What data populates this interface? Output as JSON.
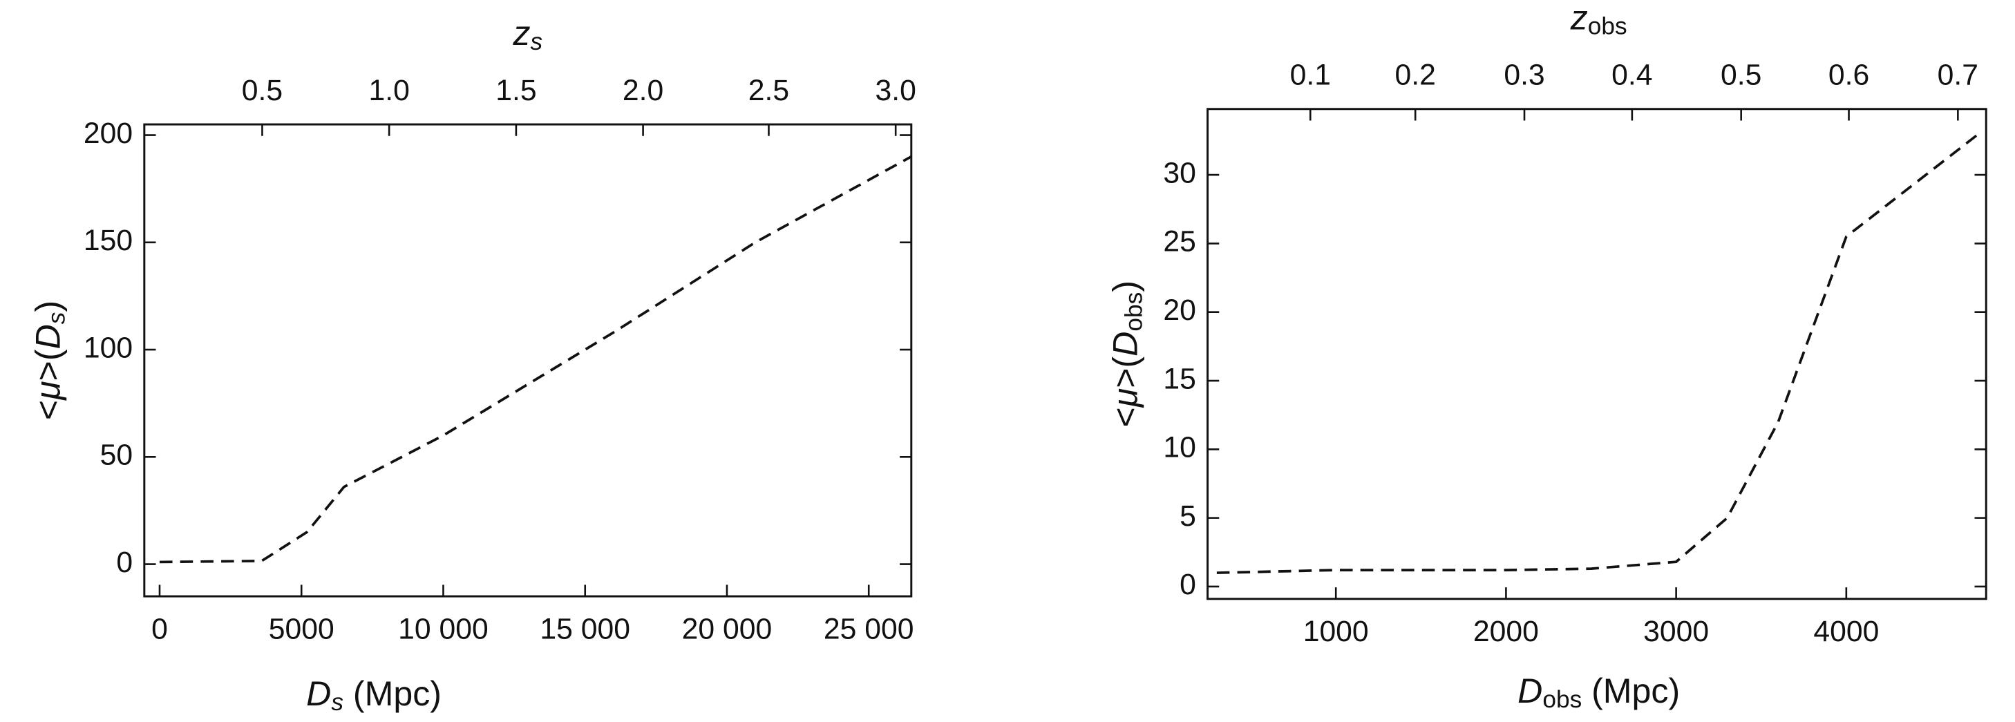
{
  "chart_data": [
    {
      "type": "line",
      "x": [
        0,
        3600,
        5200,
        6500,
        10000,
        16000,
        21000,
        26500
      ],
      "series": [
        {
          "color": "#111111",
          "dashed": true,
          "values": [
            1,
            1.5,
            15,
            36,
            60,
            108,
            150,
            190
          ]
        }
      ],
      "xlim": [
        -540,
        26500
      ],
      "ylim": [
        -15,
        205
      ],
      "xticks": [
        0,
        5000,
        {
          "value": 10000,
          "label": "10 000"
        },
        {
          "value": 15000,
          "label": "15 000"
        },
        {
          "value": 20000,
          "label": "20 000"
        },
        {
          "value": 25000,
          "label": "25 000"
        }
      ],
      "yticks": [
        0,
        50,
        100,
        150,
        200
      ],
      "x2ticks": [
        {
          "value": 3617,
          "label": "0.5"
        },
        {
          "value": 8092,
          "label": "1.0"
        },
        {
          "value": 12568,
          "label": "1.5"
        },
        {
          "value": 17043,
          "label": "2.0"
        },
        {
          "value": 21474,
          "label": "2.5"
        },
        {
          "value": 25949,
          "label": "3.0"
        }
      ],
      "xlabel": [
        {
          "text": "D",
          "italic": true
        },
        {
          "text": "s",
          "italic": true,
          "sub": true
        },
        {
          "text": " (Mpc)"
        }
      ],
      "ylabel": [
        {
          "text": "<"
        },
        {
          "text": "μ",
          "italic": true
        },
        {
          "text": ">("
        },
        {
          "text": "D",
          "italic": true
        },
        {
          "text": "s",
          "italic": true,
          "sub": true
        },
        {
          "text": ")"
        }
      ],
      "x2label": [
        {
          "text": "z",
          "italic": true
        },
        {
          "text": "s",
          "italic": true,
          "sub": true
        }
      ]
    },
    {
      "type": "line",
      "x": [
        300,
        1000,
        2000,
        2500,
        3000,
        3300,
        3600,
        4000,
        4800
      ],
      "series": [
        {
          "color": "#111111",
          "dashed": true,
          "values": [
            1.0,
            1.2,
            1.2,
            1.3,
            1.8,
            5,
            12,
            25.5,
            33.2
          ]
        }
      ],
      "xlim": [
        246,
        4822
      ],
      "ylim": [
        -0.9,
        34.8
      ],
      "xticks": [
        1000,
        2000,
        3000,
        4000
      ],
      "yticks": [
        0,
        5,
        10,
        15,
        20,
        25,
        30
      ],
      "x2ticks": [
        {
          "value": 850,
          "label": "0.1"
        },
        {
          "value": 1467,
          "label": "0.2"
        },
        {
          "value": 2108,
          "label": "0.3"
        },
        {
          "value": 2741,
          "label": "0.4"
        },
        {
          "value": 3382,
          "label": "0.5"
        },
        {
          "value": 4015,
          "label": "0.6"
        },
        {
          "value": 4656,
          "label": "0.7"
        }
      ],
      "xlabel": [
        {
          "text": "D",
          "italic": true
        },
        {
          "text": "obs",
          "sub": true
        },
        {
          "text": " (Mpc)"
        }
      ],
      "ylabel": [
        {
          "text": "<"
        },
        {
          "text": "μ",
          "italic": true
        },
        {
          "text": ">("
        },
        {
          "text": "D",
          "italic": true
        },
        {
          "text": "obs",
          "sub": true
        },
        {
          "text": ")"
        }
      ],
      "x2label": [
        {
          "text": "z",
          "italic": true
        },
        {
          "text": "obs",
          "sub": true
        }
      ]
    }
  ]
}
